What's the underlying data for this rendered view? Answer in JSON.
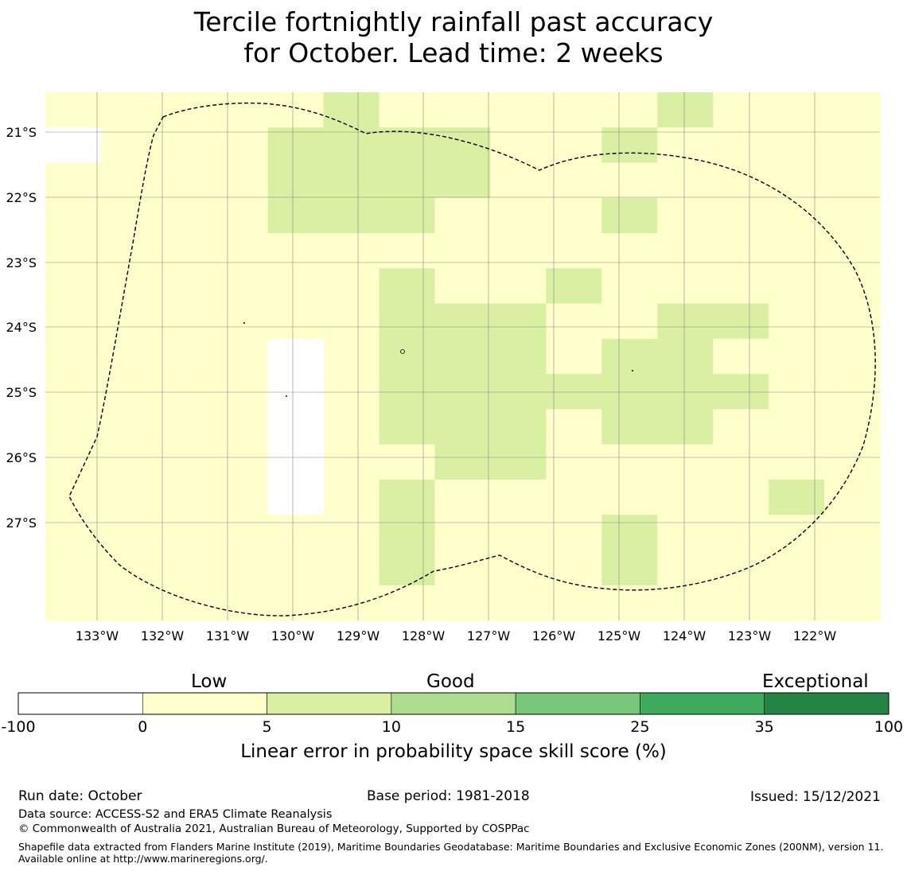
{
  "title": {
    "line1": "Tercile fortnightly rainfall past accuracy",
    "line2": "for October. Lead time: 2 weeks"
  },
  "map": {
    "lon_labels": [
      "133°W",
      "132°W",
      "131°W",
      "130°W",
      "129°W",
      "128°W",
      "127°W",
      "126°W",
      "125°W",
      "124°W",
      "123°W",
      "122°W"
    ],
    "lat_labels": [
      "21°S",
      "22°S",
      "23°S",
      "24°S",
      "25°S",
      "26°S",
      "27°S"
    ],
    "grid_levels": [
      "111112111112111",
      "011122221121111",
      "111122221111111",
      "111122211121111",
      "111111111111111",
      "111111211211111",
      "111111222112211",
      "111101222122111",
      "111101222222211",
      "111101222122111",
      "111101122111111",
      "111101211111121",
      "111111211121111",
      "111111211121111",
      "111111111111111"
    ],
    "grid_comment": "row-major cell classes (0=-100–0, 1=0–5, 2=5–10)"
  },
  "colorbar": {
    "categories": [
      "Low",
      "Good",
      "Exceptional"
    ],
    "ticks": [
      "-100",
      "0",
      "5",
      "10",
      "15",
      "25",
      "35",
      "100"
    ],
    "colors": [
      "#ffffff",
      "#ffffcc",
      "#d9f0a3",
      "#addd8e",
      "#78c679",
      "#41ab5d",
      "#238443"
    ],
    "label": "Linear error in probability space skill score (%)"
  },
  "footer": {
    "run_date": "Run date: October",
    "base_period": "Base period: 1981-2018",
    "issued": "Issued: 15/12/2021",
    "data_source": "Data source: ACCESS-S2 and ERA5 Climate Reanalysis",
    "copyright": "© Commonwealth of Australia 2021, Australian Bureau of Meteorology, Supported by COSPPac",
    "shapefile": "Shapefile data extracted from Flanders Marine Institute (2019), Maritime Boundaries Geodatabase: Maritime Boundaries and Exclusive Economic Zones (200NM), version 11. Available online at http://www.marineregions.org/."
  }
}
